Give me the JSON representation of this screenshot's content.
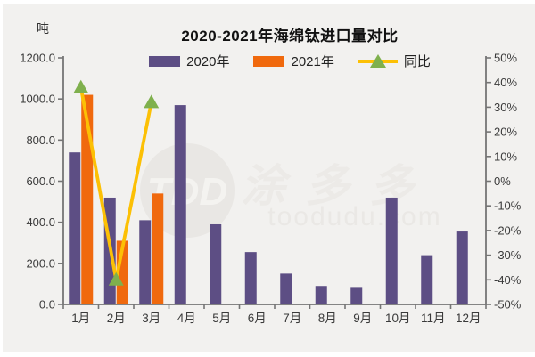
{
  "chart": {
    "title": "2020-2021年海绵钛进口量对比",
    "unit_label": "吨"
  },
  "watermark": {
    "logo_text": "TDD",
    "brand": "涂多多",
    "domain": "toodudu.com"
  },
  "chart_data": {
    "type": "bar",
    "subtype": "combo-bar-line-dual-axis",
    "title": "2020-2021年海绵钛进口量对比",
    "categories": [
      "1月",
      "2月",
      "3月",
      "4月",
      "5月",
      "6月",
      "7月",
      "8月",
      "9月",
      "10月",
      "11月",
      "12月"
    ],
    "series": [
      {
        "name": "2020年",
        "type": "bar",
        "axis": "left",
        "color": "#5d4e84",
        "values": [
          740,
          520,
          410,
          970,
          390,
          255,
          150,
          90,
          85,
          520,
          240,
          355
        ]
      },
      {
        "name": "2021年",
        "type": "bar",
        "axis": "left",
        "color": "#f0690d",
        "values": [
          1020,
          310,
          540,
          null,
          null,
          null,
          null,
          null,
          null,
          null,
          null,
          null
        ]
      },
      {
        "name": "同比",
        "type": "line",
        "axis": "right",
        "color": "#fcc005",
        "marker": "triangle-up",
        "marker_color": "#7fb04d",
        "values": [
          38,
          -40,
          32,
          null,
          null,
          null,
          null,
          null,
          null,
          null,
          null,
          null
        ]
      }
    ],
    "left_axis": {
      "label": "吨",
      "min": 0,
      "max": 1200,
      "step": 200,
      "format": "one-decimal"
    },
    "right_axis": {
      "min": -50,
      "max": 50,
      "step": 10,
      "format": "percent"
    },
    "legend_position": "top",
    "grid": false
  }
}
